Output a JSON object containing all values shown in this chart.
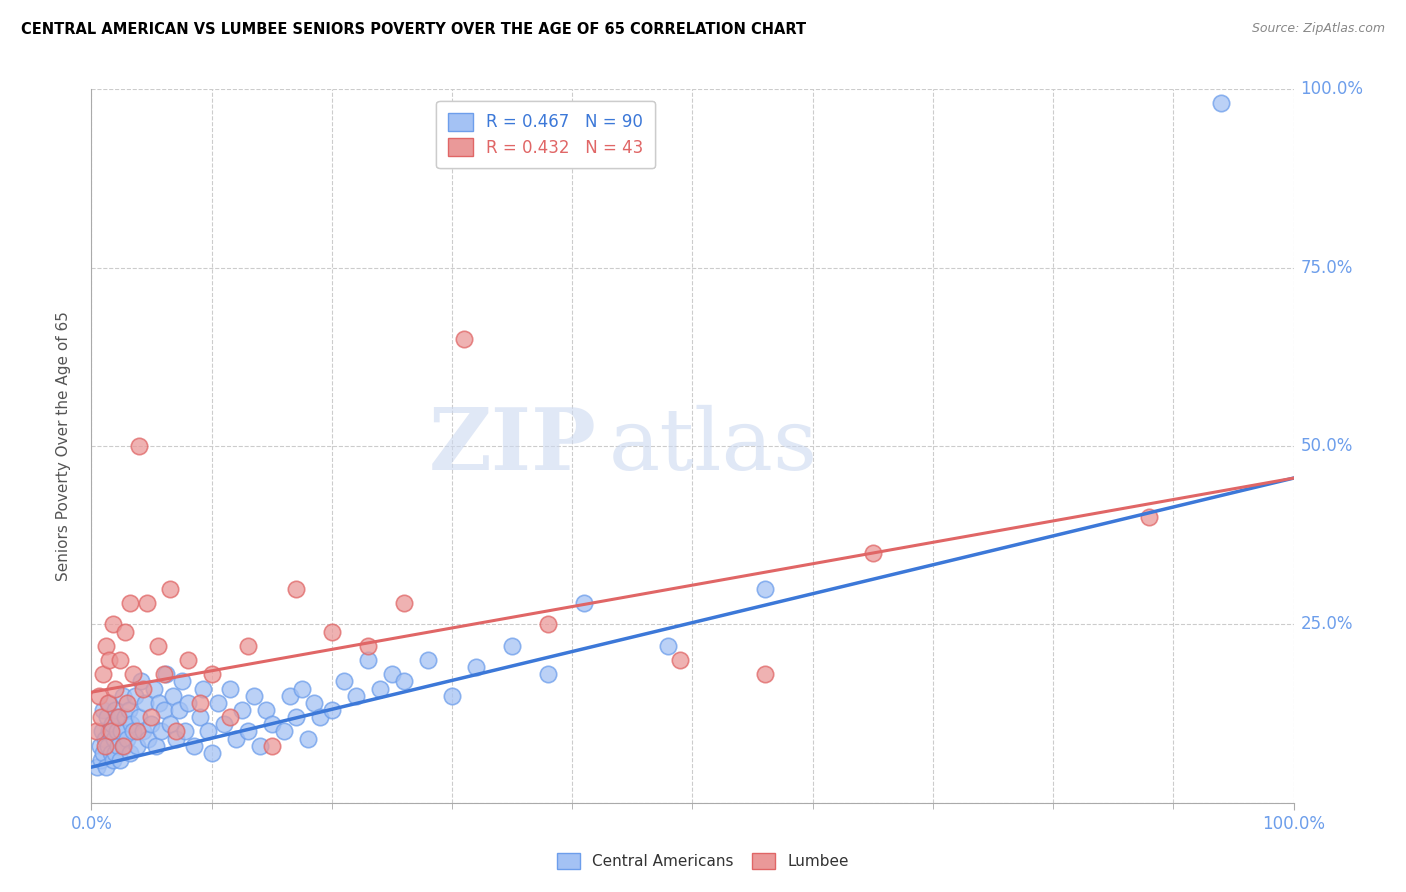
{
  "title": "CENTRAL AMERICAN VS LUMBEE SENIORS POVERTY OVER THE AGE OF 65 CORRELATION CHART",
  "source": "Source: ZipAtlas.com",
  "ylabel": "Seniors Poverty Over the Age of 65",
  "xlim": [
    0,
    1.0
  ],
  "ylim": [
    0,
    1.0
  ],
  "ytick_positions": [
    0.0,
    0.25,
    0.5,
    0.75,
    1.0
  ],
  "ytick_labels_right": [
    "",
    "25.0%",
    "50.0%",
    "75.0%",
    "100.0%"
  ],
  "watermark_zip": "ZIP",
  "watermark_atlas": "atlas",
  "legend_r1": "R = 0.467",
  "legend_n1": "N = 90",
  "legend_r2": "R = 0.432",
  "legend_n2": "N = 43",
  "blue_fill": "#a4c2f4",
  "pink_fill": "#ea9999",
  "blue_edge": "#6d9eeb",
  "pink_edge": "#e06666",
  "blue_line_color": "#3c78d8",
  "pink_line_color": "#e06666",
  "title_color": "#000000",
  "ylabel_color": "#555555",
  "tick_label_color": "#6d9eeb",
  "grid_color": "#cccccc",
  "background_color": "#ffffff",
  "blue_line_x": [
    0.0,
    1.0
  ],
  "blue_line_y": [
    0.05,
    0.455
  ],
  "pink_line_x": [
    0.0,
    1.0
  ],
  "pink_line_y": [
    0.155,
    0.455
  ],
  "blue_scatter_x": [
    0.005,
    0.007,
    0.008,
    0.009,
    0.01,
    0.01,
    0.011,
    0.012,
    0.013,
    0.014,
    0.015,
    0.015,
    0.016,
    0.017,
    0.018,
    0.019,
    0.02,
    0.02,
    0.021,
    0.022,
    0.023,
    0.024,
    0.025,
    0.026,
    0.027,
    0.028,
    0.03,
    0.031,
    0.032,
    0.033,
    0.035,
    0.036,
    0.038,
    0.04,
    0.041,
    0.043,
    0.045,
    0.047,
    0.05,
    0.052,
    0.054,
    0.056,
    0.058,
    0.06,
    0.062,
    0.065,
    0.068,
    0.07,
    0.073,
    0.075,
    0.078,
    0.08,
    0.085,
    0.09,
    0.093,
    0.097,
    0.1,
    0.105,
    0.11,
    0.115,
    0.12,
    0.125,
    0.13,
    0.135,
    0.14,
    0.145,
    0.15,
    0.16,
    0.165,
    0.17,
    0.175,
    0.18,
    0.185,
    0.19,
    0.2,
    0.21,
    0.22,
    0.23,
    0.24,
    0.25,
    0.26,
    0.28,
    0.3,
    0.32,
    0.35,
    0.38,
    0.41,
    0.48,
    0.56,
    0.94
  ],
  "blue_scatter_y": [
    0.05,
    0.08,
    0.06,
    0.1,
    0.07,
    0.13,
    0.09,
    0.05,
    0.12,
    0.08,
    0.1,
    0.14,
    0.07,
    0.11,
    0.06,
    0.09,
    0.07,
    0.13,
    0.1,
    0.08,
    0.12,
    0.06,
    0.1,
    0.15,
    0.08,
    0.12,
    0.09,
    0.13,
    0.07,
    0.11,
    0.1,
    0.15,
    0.08,
    0.12,
    0.17,
    0.1,
    0.14,
    0.09,
    0.11,
    0.16,
    0.08,
    0.14,
    0.1,
    0.13,
    0.18,
    0.11,
    0.15,
    0.09,
    0.13,
    0.17,
    0.1,
    0.14,
    0.08,
    0.12,
    0.16,
    0.1,
    0.07,
    0.14,
    0.11,
    0.16,
    0.09,
    0.13,
    0.1,
    0.15,
    0.08,
    0.13,
    0.11,
    0.1,
    0.15,
    0.12,
    0.16,
    0.09,
    0.14,
    0.12,
    0.13,
    0.17,
    0.15,
    0.2,
    0.16,
    0.18,
    0.17,
    0.2,
    0.15,
    0.19,
    0.22,
    0.18,
    0.28,
    0.22,
    0.3,
    0.98
  ],
  "pink_scatter_x": [
    0.004,
    0.006,
    0.008,
    0.01,
    0.011,
    0.012,
    0.014,
    0.015,
    0.016,
    0.018,
    0.02,
    0.022,
    0.024,
    0.026,
    0.028,
    0.03,
    0.032,
    0.035,
    0.038,
    0.04,
    0.043,
    0.046,
    0.05,
    0.055,
    0.06,
    0.065,
    0.07,
    0.08,
    0.09,
    0.1,
    0.115,
    0.13,
    0.15,
    0.17,
    0.2,
    0.23,
    0.26,
    0.31,
    0.38,
    0.49,
    0.56,
    0.65,
    0.88
  ],
  "pink_scatter_y": [
    0.1,
    0.15,
    0.12,
    0.18,
    0.08,
    0.22,
    0.14,
    0.2,
    0.1,
    0.25,
    0.16,
    0.12,
    0.2,
    0.08,
    0.24,
    0.14,
    0.28,
    0.18,
    0.1,
    0.5,
    0.16,
    0.28,
    0.12,
    0.22,
    0.18,
    0.3,
    0.1,
    0.2,
    0.14,
    0.18,
    0.12,
    0.22,
    0.08,
    0.3,
    0.24,
    0.22,
    0.28,
    0.65,
    0.25,
    0.2,
    0.18,
    0.35,
    0.4
  ]
}
